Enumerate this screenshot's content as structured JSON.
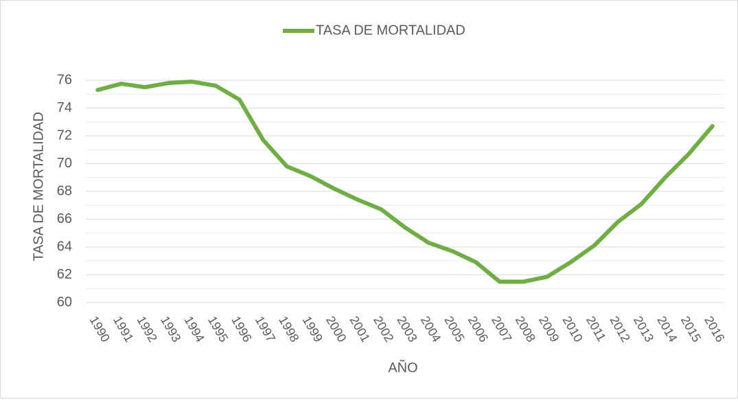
{
  "chart_data": {
    "type": "line",
    "x_label": "AÑO",
    "y_label": "TASA DE MORTALIDAD",
    "categories": [
      "1990",
      "1991",
      "1992",
      "1993",
      "1994",
      "1995",
      "1996",
      "1997",
      "1998",
      "1999",
      "2000",
      "2001",
      "2002",
      "2003",
      "2004",
      "2005",
      "2006",
      "2007",
      "2008",
      "2009",
      "2010",
      "2011",
      "2012",
      "2013",
      "2014",
      "2015",
      "2016"
    ],
    "series": [
      {
        "name": "TASA DE MORTALIDAD",
        "color": "#70ad47",
        "values": [
          75.3,
          75.75,
          75.5,
          75.8,
          75.9,
          75.6,
          74.6,
          71.7,
          69.8,
          69.1,
          68.2,
          67.4,
          66.7,
          65.4,
          64.3,
          63.7,
          62.9,
          61.5,
          61.5,
          61.85,
          62.9,
          64.1,
          65.8,
          67.1,
          69.0,
          70.7,
          72.7
        ]
      }
    ],
    "ylim": [
      60,
      76
    ],
    "yticks": [
      60,
      62,
      64,
      66,
      68,
      70,
      72,
      74,
      76
    ],
    "minor_yticks": [
      61,
      63,
      65,
      67,
      69,
      71,
      73,
      75
    ],
    "grid": true,
    "legend": "top"
  }
}
